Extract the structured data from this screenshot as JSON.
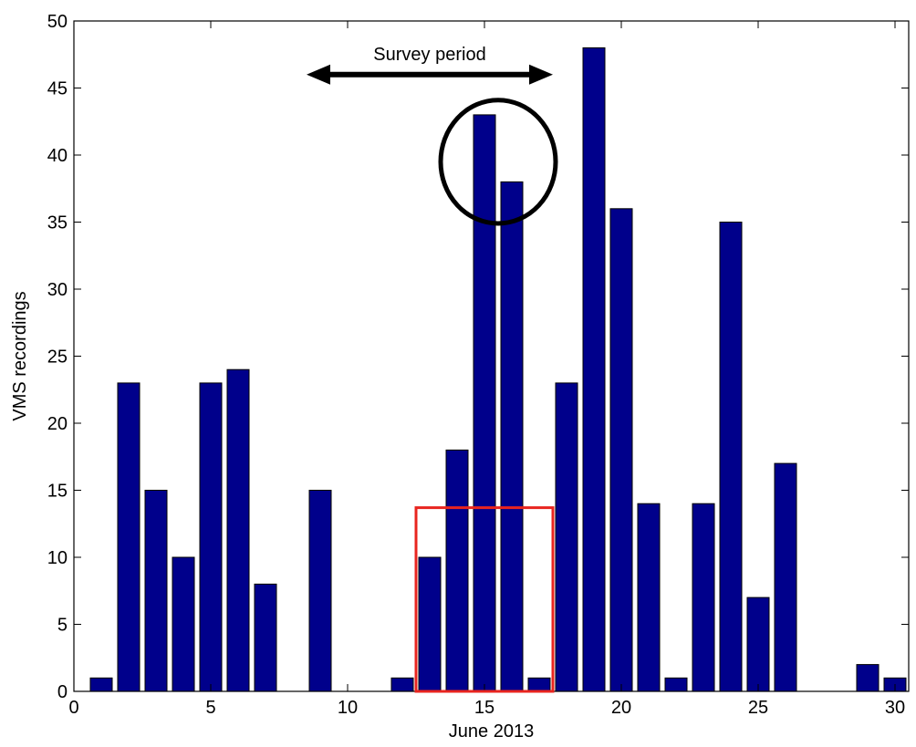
{
  "chart_data": {
    "type": "bar",
    "xlabel": "June 2013",
    "ylabel": "VMS recordings",
    "xlim": [
      0,
      30.5
    ],
    "ylim": [
      0,
      50
    ],
    "x_ticks": [
      0,
      5,
      10,
      15,
      20,
      25,
      30
    ],
    "y_ticks": [
      0,
      5,
      10,
      15,
      20,
      25,
      30,
      35,
      40,
      45,
      50
    ],
    "bar_color": "#00008b",
    "grid": false,
    "x": [
      1,
      2,
      3,
      4,
      5,
      6,
      7,
      9,
      12,
      13,
      14,
      15,
      16,
      17,
      18,
      19,
      20,
      21,
      22,
      23,
      24,
      25,
      26,
      29,
      30
    ],
    "values": [
      1,
      23,
      15,
      10,
      23,
      24,
      8,
      15,
      1,
      10,
      18,
      43,
      38,
      1,
      23,
      48,
      36,
      14,
      1,
      14,
      35,
      7,
      17,
      2,
      1
    ],
    "annotations": {
      "survey_period": {
        "label": "Survey period",
        "x_range": [
          8.5,
          17.5
        ],
        "y": 46,
        "color": "#000000"
      },
      "red_box": {
        "x_range": [
          12.5,
          17.5
        ],
        "y_range": [
          0,
          13.7
        ],
        "color": "#e8251f"
      },
      "black_ellipse": {
        "center": [
          15.5,
          39.5
        ],
        "radius_x": 2.1,
        "radius_y": 4.6,
        "color": "#000000"
      }
    }
  }
}
